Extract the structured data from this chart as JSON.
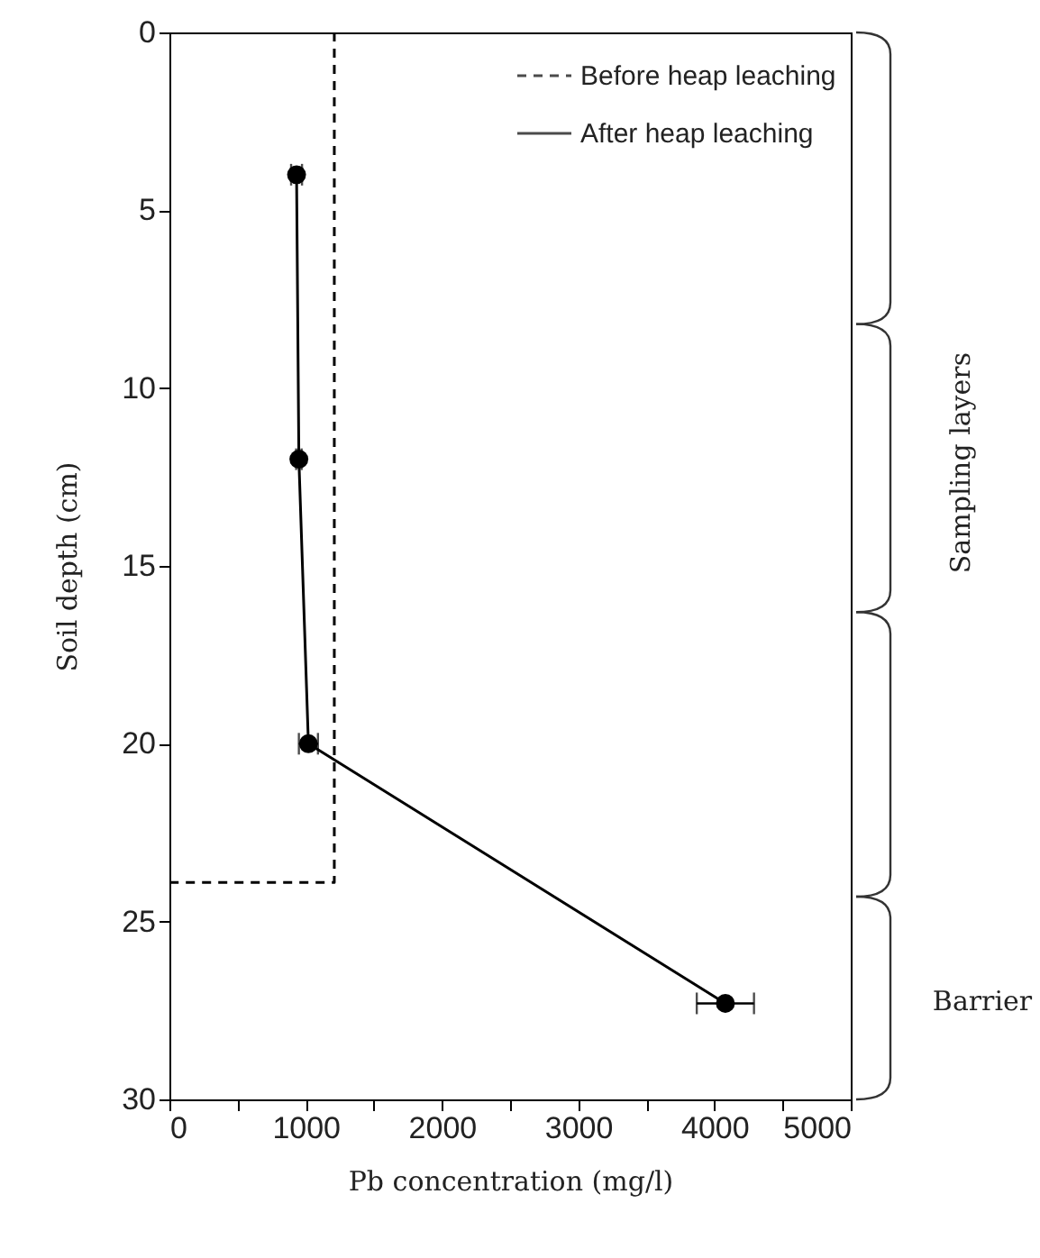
{
  "chart_data": {
    "type": "line",
    "xlabel": "Pb concentration (mg/l)",
    "ylabel": "Soil depth (cm)",
    "xlim": [
      0,
      5000
    ],
    "xticks": [
      0,
      {
        "value": 500,
        "label": null
      },
      1000,
      {
        "value": 1500,
        "label": null
      },
      2000,
      {
        "value": 2500,
        "label": null
      },
      3000,
      {
        "value": 3500,
        "label": null
      },
      4000,
      {
        "value": 4500,
        "label": null
      },
      5000
    ],
    "ylim": [
      30,
      0
    ],
    "yticks": [
      0,
      5,
      10,
      15,
      20,
      25,
      30
    ],
    "legend": "top right",
    "grid": false,
    "series": [
      {
        "name": "Before heap leaching",
        "color": "#000000",
        "line_style": "dashed",
        "marker": "none",
        "x": [
          1210,
          1210,
          0
        ],
        "values": [
          0,
          23.9,
          23.9
        ]
      },
      {
        "name": "After heap leaching",
        "color": "#000000",
        "line_style": "solid",
        "marker": "circle",
        "x": [
          933,
          950,
          1020,
          4080
        ],
        "values": [
          4,
          12,
          20,
          27.3
        ],
        "xerrors": [
          40,
          20,
          70,
          210
        ]
      }
    ],
    "annotations": [
      "Sampling layers",
      "Barrier"
    ]
  }
}
